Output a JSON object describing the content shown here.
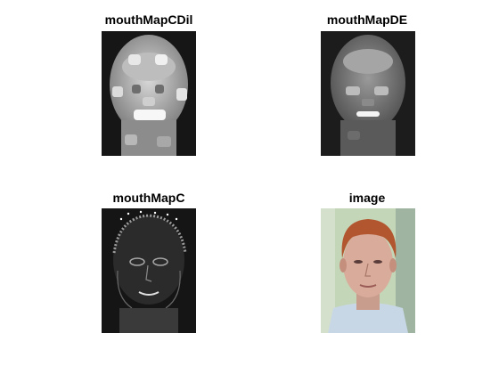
{
  "figure": {
    "panels": [
      {
        "title": "mouthMapCDil"
      },
      {
        "title": "mouthMapDE"
      },
      {
        "title": "mouthMapC"
      },
      {
        "title": "image"
      }
    ]
  }
}
